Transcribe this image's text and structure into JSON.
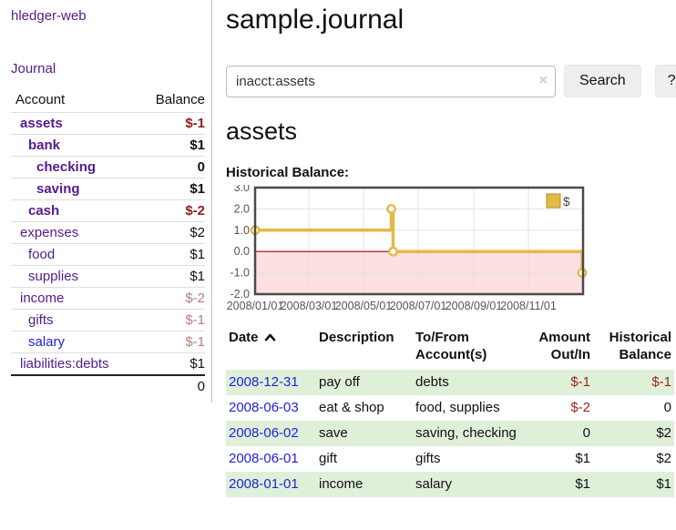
{
  "app": {
    "brand": "hledger-web"
  },
  "sidebar": {
    "journal_label": "Journal",
    "accounts_table": {
      "headers": [
        "Account",
        "Balance"
      ],
      "rows": [
        {
          "name": "assets",
          "indent": 1,
          "bold": true,
          "balance": "$-1",
          "balance_class": "neg-strong",
          "link_color": "purple"
        },
        {
          "name": "bank",
          "indent": 2,
          "bold": true,
          "balance": "$1",
          "balance_class": "pos",
          "link_color": "purple"
        },
        {
          "name": "checking",
          "indent": 3,
          "bold": true,
          "balance": "0",
          "balance_class": "pos",
          "link_color": "purple"
        },
        {
          "name": "saving",
          "indent": 3,
          "bold": true,
          "balance": "$1",
          "balance_class": "pos",
          "link_color": "purple"
        },
        {
          "name": "cash",
          "indent": 2,
          "bold": true,
          "balance": "$-2",
          "balance_class": "neg-strong",
          "link_color": "purple"
        },
        {
          "name": "expenses",
          "indent": 1,
          "bold": false,
          "balance": "$2",
          "balance_class": "pos",
          "link_color": "purple"
        },
        {
          "name": "food",
          "indent": 2,
          "bold": false,
          "balance": "$1",
          "balance_class": "pos",
          "link_color": "purple"
        },
        {
          "name": "supplies",
          "indent": 2,
          "bold": false,
          "balance": "$1",
          "balance_class": "pos",
          "link_color": "purple"
        },
        {
          "name": "income",
          "indent": 1,
          "bold": false,
          "balance": "$-2",
          "balance_class": "neg-soft",
          "link_color": "purple"
        },
        {
          "name": "gifts",
          "indent": 2,
          "bold": false,
          "balance": "$-1",
          "balance_class": "neg-soft",
          "link_color": "purple"
        },
        {
          "name": "salary",
          "indent": 2,
          "bold": false,
          "balance": "$-1",
          "balance_class": "neg-soft",
          "link_color": "blue"
        },
        {
          "name": "liabilities:debts",
          "indent": 1,
          "bold": false,
          "balance": "$1",
          "balance_class": "pos",
          "link_color": "purple"
        }
      ],
      "total": "0"
    }
  },
  "header": {
    "title": "sample.journal"
  },
  "search": {
    "value": "inacct:assets",
    "clear_icon": "×",
    "search_label": "Search",
    "help_label": "?"
  },
  "account_page": {
    "heading": "assets",
    "chart_label": "Historical Balance:"
  },
  "chart_data": {
    "type": "line",
    "step": true,
    "title": "Historical Balance:",
    "legend": [
      "$"
    ],
    "legend_position": "top-right",
    "grid": true,
    "x_range": [
      "2008-01-01",
      "2009-01-01"
    ],
    "x_ticks": [
      "2008/01/01",
      "2008/03/01",
      "2008/05/01",
      "2008/07/01",
      "2008/09/01",
      "2008/11/01"
    ],
    "y_ticks": [
      3.0,
      2.0,
      1.0,
      0.0,
      -1.0,
      -2.0
    ],
    "ylim": [
      -2,
      3
    ],
    "series": [
      {
        "name": "$",
        "color": "#e4ba45",
        "points": [
          [
            "2008-01-01",
            1
          ],
          [
            "2008-06-01",
            2
          ],
          [
            "2008-06-03",
            0
          ],
          [
            "2008-12-31",
            -1
          ]
        ]
      }
    ],
    "colors": {
      "negative_region": "#fbdfe1",
      "zero_line": "#a40000",
      "border": "#4a4a4a",
      "gridline": "#e2e2e2",
      "axis_text": "#555555",
      "legend_swatch_border": "#b28d28"
    }
  },
  "register_table": {
    "headers": [
      {
        "label": "Date",
        "sorted": "asc"
      },
      {
        "label": "Description"
      },
      {
        "label": "To/From Account(s)"
      },
      {
        "label": "Amount Out/In"
      },
      {
        "label": "Historical Balance"
      }
    ],
    "rows": [
      {
        "date": "2008-12-31",
        "description": "pay off",
        "accounts": "debts",
        "amount": "$-1",
        "balance": "$-1"
      },
      {
        "date": "2008-06-03",
        "description": "eat & shop",
        "accounts": "food, supplies",
        "amount": "$-2",
        "balance": "0"
      },
      {
        "date": "2008-06-02",
        "description": "save",
        "accounts": "saving, checking",
        "amount": "0",
        "balance": "$2"
      },
      {
        "date": "2008-06-01",
        "description": "gift",
        "accounts": "gifts",
        "amount": "$1",
        "balance": "$2"
      },
      {
        "date": "2008-01-01",
        "description": "income",
        "accounts": "salary",
        "amount": "$1",
        "balance": "$1"
      }
    ]
  }
}
